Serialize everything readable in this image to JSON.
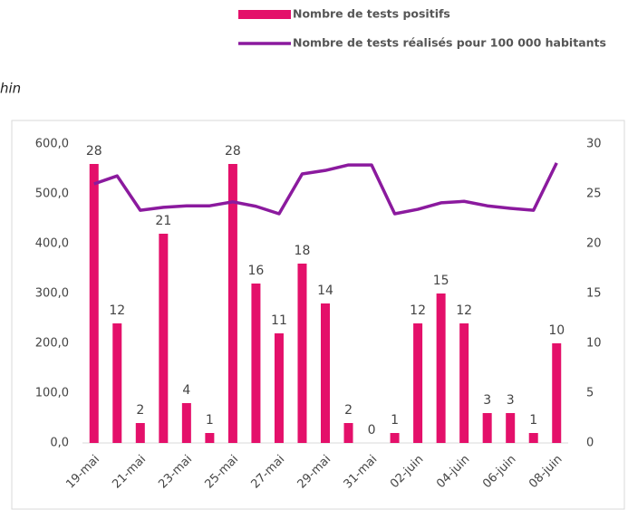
{
  "chart_data": {
    "type": "combo",
    "title_fragment": "hin",
    "categories": [
      "19-mai",
      null,
      "21-mai",
      null,
      "23-mai",
      null,
      "25-mai",
      null,
      "27-mai",
      null,
      "29-mai",
      null,
      "31-mai",
      null,
      "02-juin",
      null,
      "04-juin",
      null,
      "06-juin",
      null,
      "08-juin"
    ],
    "series": [
      {
        "name": "Nombre de tests positifs",
        "type": "bar",
        "axis": "y2",
        "color": "#e4106a",
        "values": [
          28,
          12,
          2,
          21,
          4,
          1,
          28,
          16,
          11,
          18,
          14,
          2,
          0,
          1,
          12,
          15,
          12,
          3,
          3,
          1,
          10
        ]
      },
      {
        "name": "Nombre de tests réalisés pour 100 000 habitants",
        "type": "line",
        "axis": "y",
        "color": "#8b1a9e",
        "values": [
          520,
          536,
          467,
          473,
          476,
          476,
          484,
          475,
          460,
          540,
          547,
          558,
          558,
          460,
          469,
          482,
          485,
          476,
          471,
          467,
          562
        ]
      }
    ],
    "ylim": [
      0,
      600
    ],
    "yticks": [
      {
        "value": 0,
        "label": "0,0"
      },
      {
        "value": 100,
        "label": "100,0"
      },
      {
        "value": 200,
        "label": "200,0"
      },
      {
        "value": 300,
        "label": "300,0"
      },
      {
        "value": 400,
        "label": "400,0"
      },
      {
        "value": 500,
        "label": "500,0"
      },
      {
        "value": 600,
        "label": "600,0"
      }
    ],
    "y2lim": [
      0,
      30
    ],
    "y2ticks": [
      0,
      5,
      10,
      15,
      20,
      25,
      30
    ],
    "legend": "top"
  }
}
